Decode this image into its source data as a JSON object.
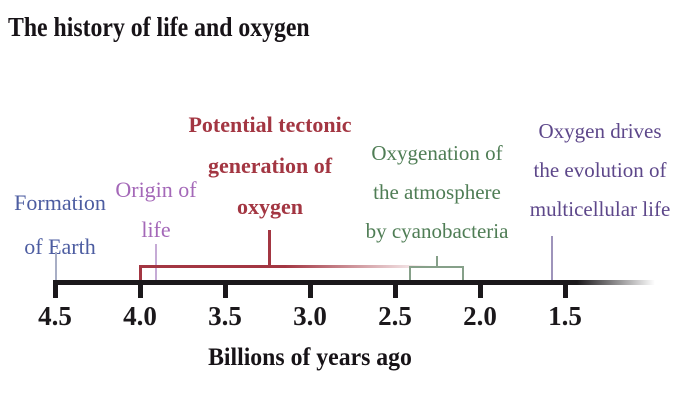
{
  "title": "The history of life and oxygen",
  "colors": {
    "axis_black": "#1b181b",
    "formation_blue": "#4d5da1",
    "origin_purple": "#a468b8",
    "tectonic_red": "#a33642",
    "oxygenation_green": "#4f7d55",
    "multicellular_purple": "#5d478a",
    "green_bracket": "#86a089"
  },
  "chart_data": {
    "type": "timeline",
    "axis_label": "Billions of years ago",
    "axis_ticks": [
      "4.5",
      "4.0",
      "3.5",
      "3.0",
      "2.5",
      "2.0",
      "1.5"
    ],
    "axis_range_ga": [
      4.5,
      1.0
    ],
    "events": [
      {
        "label": "Formation of Earth",
        "lines": [
          "Formation",
          "of Earth"
        ],
        "time_ga": 4.5,
        "marker": "vertical-line",
        "color": "#4d5da1"
      },
      {
        "label": "Origin of life",
        "lines": [
          "Origin of",
          "life"
        ],
        "time_ga": 3.9,
        "marker": "vertical-line",
        "color": "#a468b8"
      },
      {
        "label": "Potential tectonic generation of oxygen",
        "lines": [
          "Potential tectonic",
          "generation of",
          "oxygen"
        ],
        "span_ga": [
          4.0,
          2.8
        ],
        "marker": "bracket-fading-right",
        "color": "#a33642"
      },
      {
        "label": "Oxygenation of the atmosphere by cyanobacteria",
        "lines": [
          "Oxygenation of",
          "the atmosphere",
          "by cyanobacteria"
        ],
        "span_ga": [
          2.4,
          2.1
        ],
        "marker": "bracket",
        "color": "#4f7d55"
      },
      {
        "label": "Oxygen drives the evolution of multicellular life",
        "lines": [
          "Oxygen drives",
          "the evolution of",
          "multicellular life"
        ],
        "time_ga": 1.6,
        "marker": "vertical-line",
        "color": "#5d478a"
      }
    ]
  }
}
